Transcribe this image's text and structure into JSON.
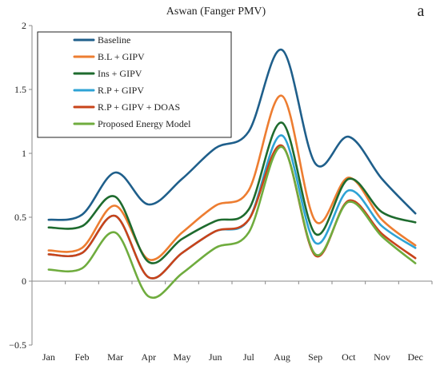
{
  "chart_data": {
    "type": "line",
    "title": "Aswan (Fanger PMV)",
    "panel_label": "a",
    "xlabel": "",
    "ylabel": "",
    "categories": [
      "Jan",
      "Feb",
      "Mar",
      "Apr",
      "May",
      "Jun",
      "Jul",
      "Aug",
      "Sep",
      "Oct",
      "Nov",
      "Dec"
    ],
    "ylim": [
      -0.5,
      2
    ],
    "yticks": [
      "2",
      "1.5",
      "1",
      "0.5",
      "0",
      "−0.5"
    ],
    "ytick_values": [
      2,
      1.5,
      1,
      0.5,
      0,
      -0.5
    ],
    "grid": false,
    "legend_position": "top-left",
    "series": [
      {
        "name": "Baseline",
        "color": "#1f5f8b",
        "values": [
          0.48,
          0.52,
          0.85,
          0.6,
          0.8,
          1.04,
          1.17,
          1.81,
          0.92,
          1.13,
          0.8,
          0.53
        ]
      },
      {
        "name": "B.L + GIPV",
        "color": "#ed7d31",
        "values": [
          0.24,
          0.26,
          0.59,
          0.17,
          0.38,
          0.59,
          0.71,
          1.45,
          0.47,
          0.81,
          0.48,
          0.28
        ]
      },
      {
        "name": "Ins + GIPV",
        "color": "#1e6b2e",
        "values": [
          0.42,
          0.43,
          0.66,
          0.15,
          0.33,
          0.47,
          0.56,
          1.24,
          0.37,
          0.8,
          0.54,
          0.46
        ]
      },
      {
        "name": "R.P + GIPV",
        "color": "#2ea3d5",
        "values": [
          0.21,
          0.22,
          0.51,
          0.03,
          0.22,
          0.39,
          0.48,
          1.14,
          0.3,
          0.71,
          0.43,
          0.26
        ]
      },
      {
        "name": "R.P + GIPV + DOAS",
        "color": "#c8431a",
        "values": [
          0.21,
          0.22,
          0.51,
          0.03,
          0.22,
          0.39,
          0.48,
          1.06,
          0.2,
          0.63,
          0.37,
          0.18
        ]
      },
      {
        "name": "Proposed Energy Model",
        "color": "#6fac3e",
        "values": [
          0.09,
          0.1,
          0.38,
          -0.12,
          0.06,
          0.26,
          0.38,
          1.05,
          0.21,
          0.62,
          0.35,
          0.14
        ]
      }
    ]
  }
}
